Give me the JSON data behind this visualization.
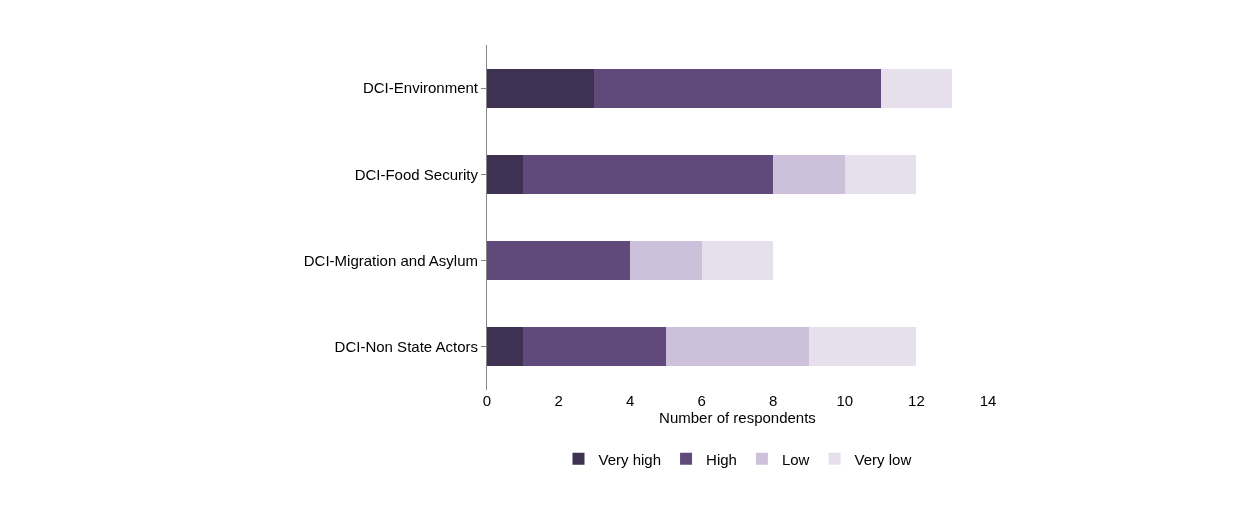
{
  "chart_data": {
    "type": "bar",
    "orientation": "horizontal",
    "stacked": true,
    "categories": [
      "DCI-Environment",
      "DCI-Food Security",
      "DCI-Migration and Asylum",
      "DCI-Non State Actors"
    ],
    "series": [
      {
        "name": "Very high",
        "color": "#3f3151",
        "values": [
          3,
          1,
          0,
          1
        ]
      },
      {
        "name": "High",
        "color": "#604a7b",
        "values": [
          8,
          7,
          4,
          4
        ]
      },
      {
        "name": "Low",
        "color": "#ccc0da",
        "values": [
          0,
          2,
          2,
          4
        ]
      },
      {
        "name": "Very low",
        "color": "#e5e0ec",
        "values": [
          2,
          2,
          2,
          3
        ]
      }
    ],
    "xlabel": "Number of respondents",
    "xlim": [
      0,
      14
    ],
    "xticks": [
      0,
      2,
      4,
      6,
      8,
      10,
      12,
      14
    ],
    "grid": false,
    "legend": "bottom"
  }
}
